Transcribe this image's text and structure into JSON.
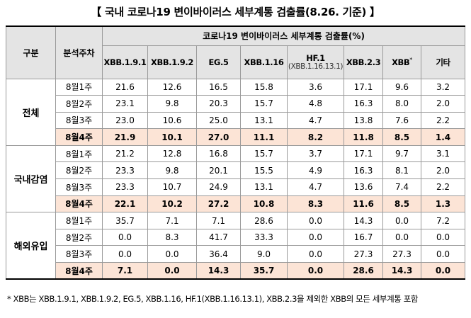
{
  "title": "【 국내 코로나19 변이바이러스 세부계통 검출률(8.26. 기준) 】",
  "header": {
    "group_col": "구분",
    "week_col": "분석주차",
    "span_title": "코로나19 변이바이러스 세부계통 검출률(%)",
    "variants": [
      "XBB.1.9.1",
      "XBB.1.9.2",
      "EG.5",
      "XBB.1.16",
      "HF.1",
      "XBB.2.3",
      "XBB",
      "기타"
    ],
    "hf_note": "(XBB.1.16.13.1)",
    "xbb_mark": "*"
  },
  "groups": [
    {
      "name": "전체",
      "rows": [
        {
          "week": "8월1주",
          "values": [
            "21.6",
            "12.6",
            "16.5",
            "15.8",
            "3.6",
            "17.1",
            "9.6",
            "3.2"
          ]
        },
        {
          "week": "8월2주",
          "values": [
            "23.1",
            "9.8",
            "20.3",
            "15.7",
            "4.8",
            "16.3",
            "8.0",
            "2.0"
          ]
        },
        {
          "week": "8월3주",
          "values": [
            "23.0",
            "10.6",
            "25.0",
            "13.1",
            "4.7",
            "13.8",
            "7.6",
            "2.2"
          ]
        },
        {
          "week": "8월4주",
          "values": [
            "21.9",
            "10.1",
            "27.0",
            "11.1",
            "8.2",
            "11.8",
            "8.5",
            "1.4"
          ]
        }
      ]
    },
    {
      "name": "국내감염",
      "rows": [
        {
          "week": "8월1주",
          "values": [
            "21.2",
            "12.8",
            "16.8",
            "15.7",
            "3.7",
            "17.1",
            "9.7",
            "3.1"
          ]
        },
        {
          "week": "8월2주",
          "values": [
            "23.3",
            "9.8",
            "20.1",
            "15.5",
            "4.9",
            "16.3",
            "8.1",
            "2.0"
          ]
        },
        {
          "week": "8월3주",
          "values": [
            "23.3",
            "10.7",
            "24.9",
            "13.1",
            "4.7",
            "13.6",
            "7.4",
            "2.2"
          ]
        },
        {
          "week": "8월4주",
          "values": [
            "22.1",
            "10.2",
            "27.2",
            "10.8",
            "8.3",
            "11.6",
            "8.5",
            "1.3"
          ]
        }
      ]
    },
    {
      "name": "해외유입",
      "rows": [
        {
          "week": "8월1주",
          "values": [
            "35.7",
            "7.1",
            "7.1",
            "28.6",
            "0.0",
            "14.3",
            "0.0",
            "7.2"
          ]
        },
        {
          "week": "8월2주",
          "values": [
            "0.0",
            "8.3",
            "41.7",
            "33.3",
            "0.0",
            "16.7",
            "0.0",
            "0.0"
          ]
        },
        {
          "week": "8월3주",
          "values": [
            "0.0",
            "0.0",
            "36.4",
            "9.0",
            "0.0",
            "27.3",
            "27.3",
            "0.0"
          ]
        },
        {
          "week": "8월4주",
          "values": [
            "7.1",
            "0.0",
            "14.3",
            "35.7",
            "0.0",
            "28.6",
            "14.3",
            "0.0"
          ]
        }
      ]
    }
  ],
  "footnote": "* XBB는 XBB.1.9.1, XBB.1.9.2, EG.5, XBB.1.16, HF.1(XBB.1.16.13.1), XBB.2.3을 제외한 XBB의 모든 세부계통 포함",
  "colors": {
    "header_bg": "#e4e4e4",
    "highlight_bg": "#fce4d6"
  }
}
